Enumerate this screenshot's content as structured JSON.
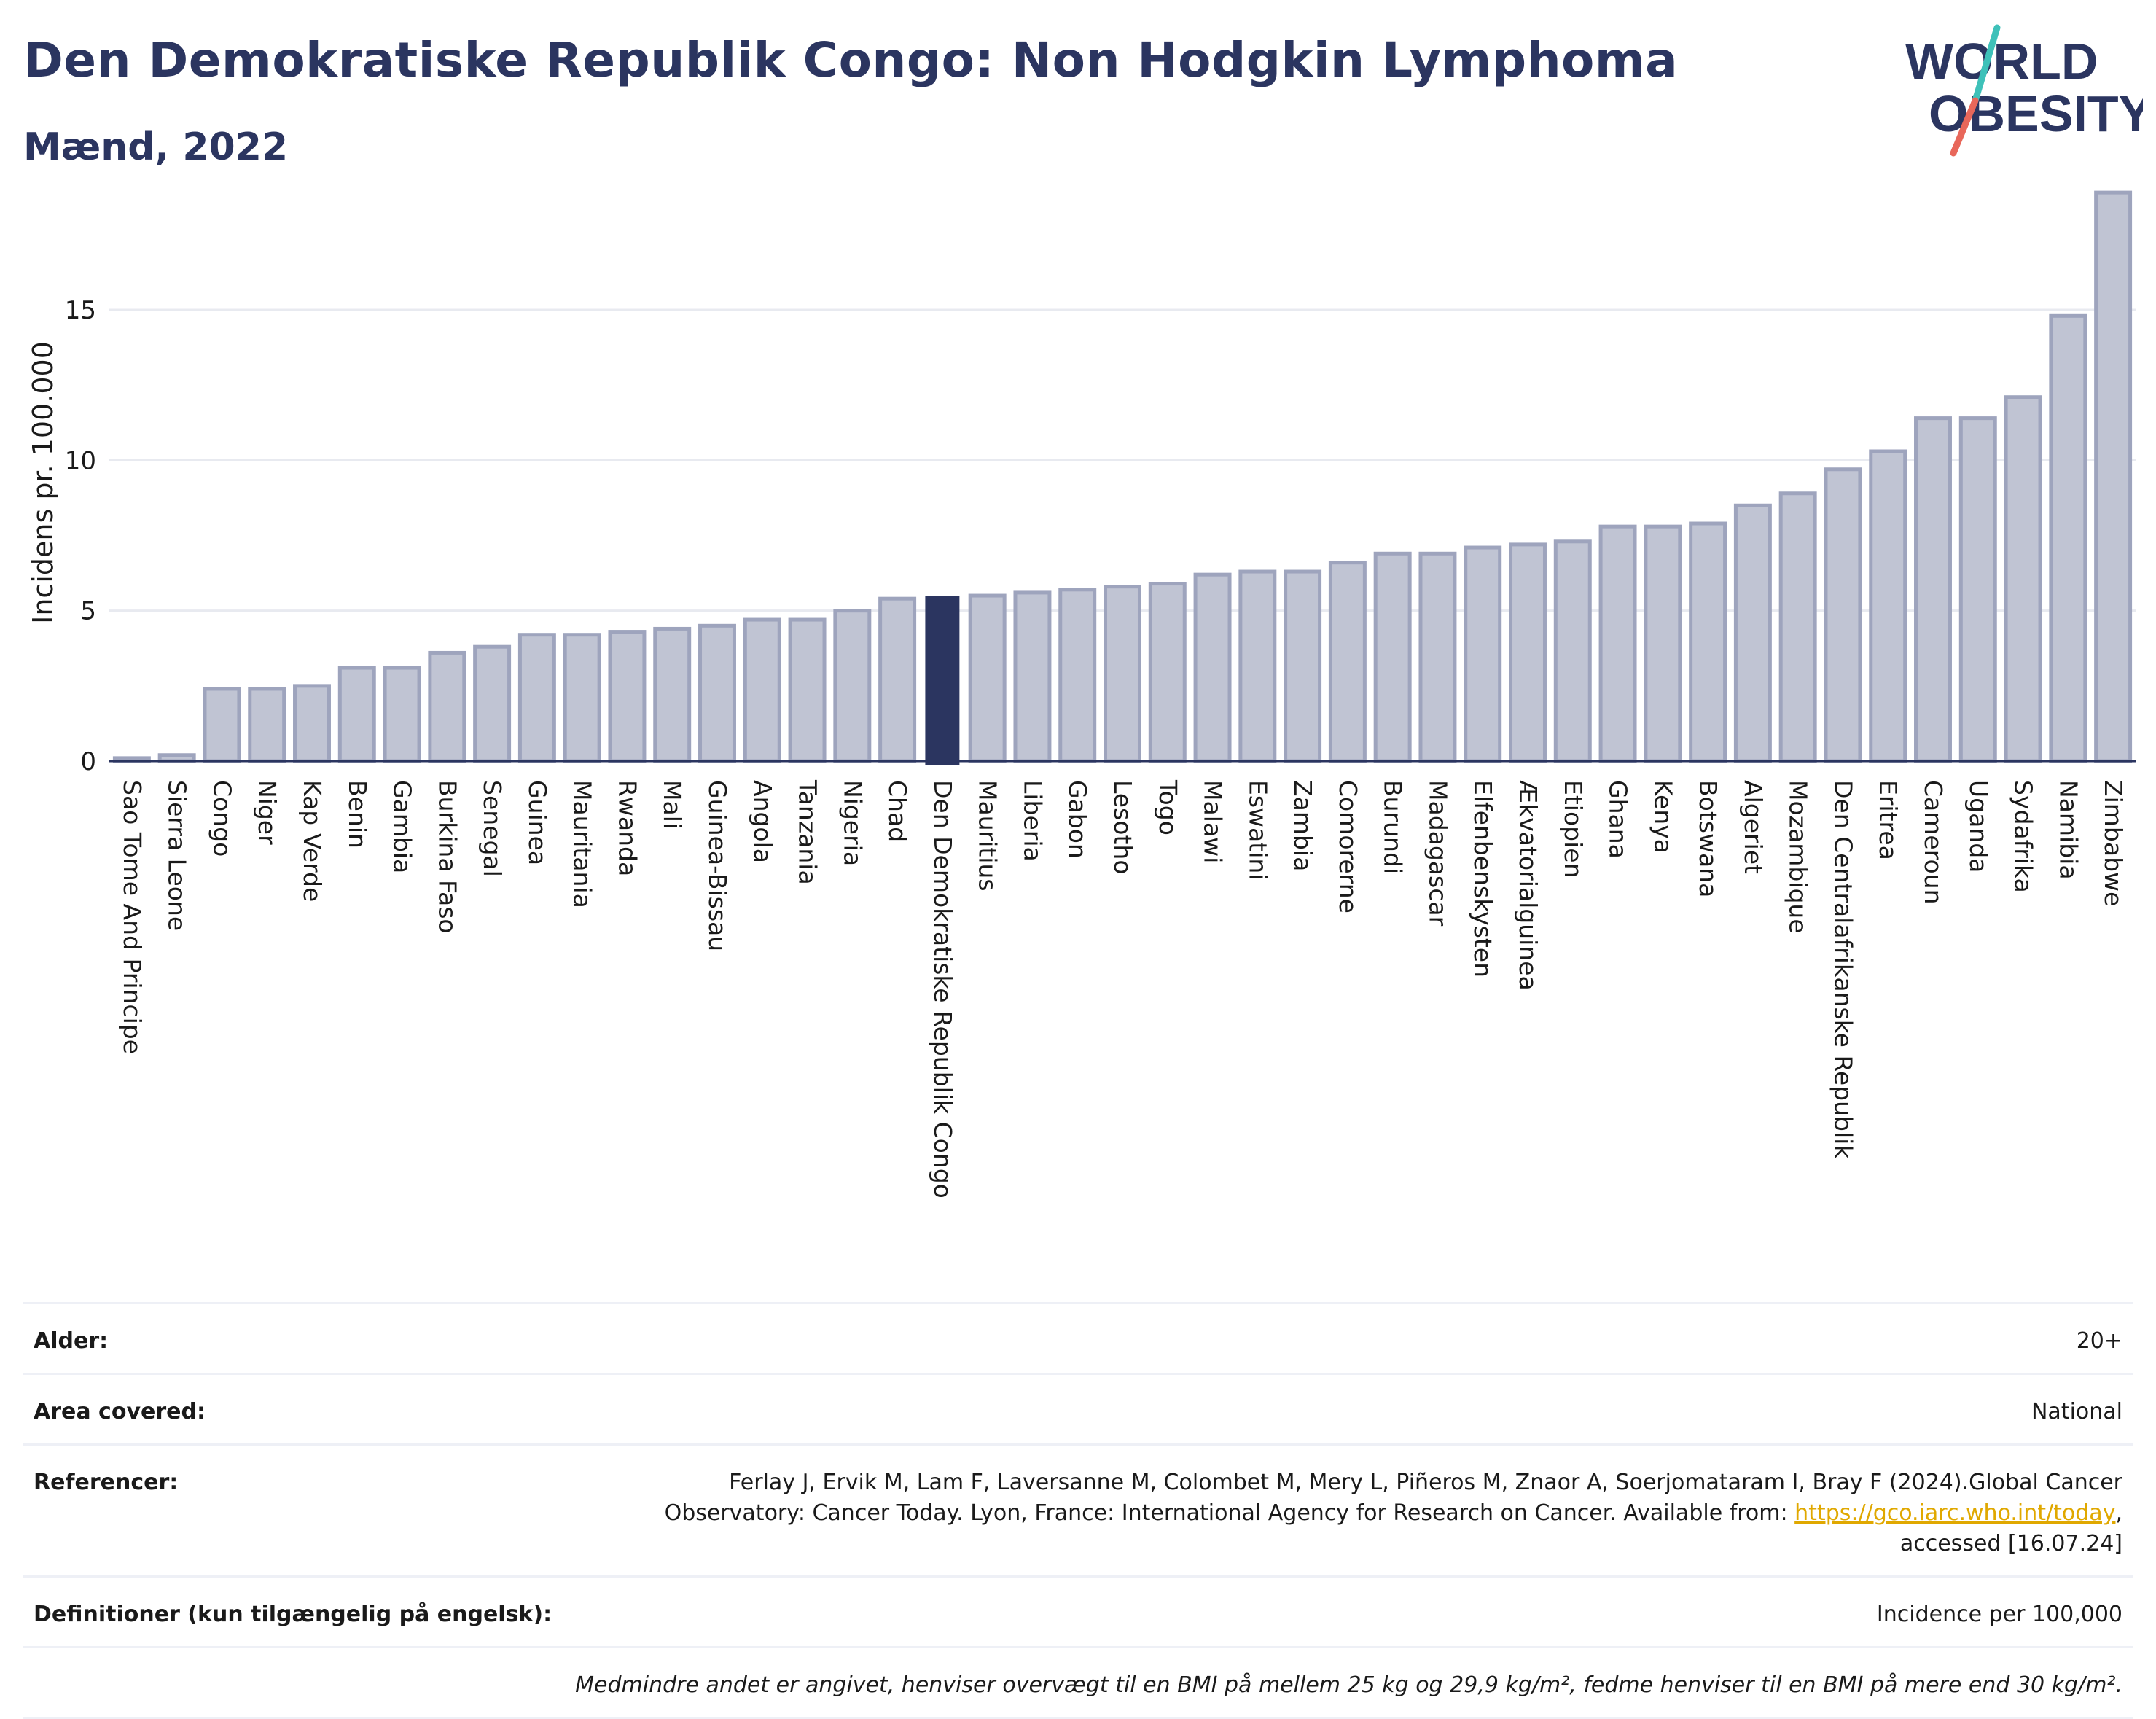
{
  "header": {
    "title": "Den Demokratiske Republik Congo: Non Hodgkin Lymphoma",
    "subtitle": "Mænd, 2022"
  },
  "logo": {
    "line1": "WORLD",
    "line2": "OBESITY",
    "colors": {
      "text": "#2b3560",
      "slash_top": "#3ec1b9",
      "slash_bottom": "#e8675a"
    }
  },
  "chart_data": {
    "type": "bar",
    "title": "Den Demokratiske Republik Congo: Non Hodgkin Lymphoma",
    "subtitle": "Mænd, 2022",
    "xlabel": "",
    "ylabel": "Incidens pr. 100.000",
    "ylim": [
      0,
      19
    ],
    "yticks": [
      0,
      5,
      10,
      15
    ],
    "grid": true,
    "highlight": "Den Demokratiske Republik Congo",
    "colors": {
      "bar": "#c0c4d3",
      "bar_edge": "#9ea4bd",
      "highlight": "#2b3560"
    },
    "categories": [
      "Sao Tome And Principe",
      "Sierra Leone",
      "Congo",
      "Niger",
      "Kap Verde",
      "Benin",
      "Gambia",
      "Burkina Faso",
      "Senegal",
      "Guinea",
      "Mauritania",
      "Rwanda",
      "Mali",
      "Guinea-Bissau",
      "Angola",
      "Tanzania",
      "Nigeria",
      "Chad",
      "Den Demokratiske Republik Congo",
      "Mauritius",
      "Liberia",
      "Gabon",
      "Lesotho",
      "Togo",
      "Malawi",
      "Eswatini",
      "Zambia",
      "Comorerne",
      "Burundi",
      "Madagascar",
      "Elfenbenskysten",
      "Ækvatorialguinea",
      "Etiopien",
      "Ghana",
      "Kenya",
      "Botswana",
      "Algeriet",
      "Mozambique",
      "Den Centralafrikanske Republik",
      "Eritrea",
      "Cameroun",
      "Uganda",
      "Sydafrika",
      "Namibia",
      "Zimbabwe"
    ],
    "values": [
      0.1,
      0.2,
      2.4,
      2.4,
      2.5,
      3.1,
      3.1,
      3.6,
      3.8,
      4.2,
      4.2,
      4.3,
      4.4,
      4.5,
      4.7,
      4.7,
      5.0,
      5.4,
      5.5,
      5.5,
      5.6,
      5.7,
      5.8,
      5.9,
      6.2,
      6.3,
      6.3,
      6.6,
      6.9,
      6.9,
      7.1,
      7.2,
      7.3,
      7.8,
      7.8,
      7.9,
      8.5,
      8.9,
      9.7,
      10.3,
      11.4,
      11.4,
      12.1,
      14.8,
      18.9
    ]
  },
  "info": {
    "age_label": "Alder:",
    "age_value": "20+",
    "area_label": "Area covered:",
    "area_value": "National",
    "ref_label": "Referencer:",
    "ref_text_1": "Ferlay J, Ervik M, Lam F, Laversanne M, Colombet M, Mery L, Piñeros M, Znaor A, Soerjomataram I, Bray F (2024).Global Cancer Observatory: Cancer Today. Lyon, France: International Agency for Research on Cancer. Available from: ",
    "ref_link": "https://gco.iarc.who.int/today",
    "ref_text_2": ", accessed [16.07.24]",
    "def_label": "Definitioner (kun tilgængelig på engelsk):",
    "def_value": "Incidence per 100,000",
    "note": "Medmindre andet er angivet, henviser overvægt til en BMI på mellem 25 kg og 29,9 kg/m², fedme henviser til en BMI på mere end 30 kg/m²."
  }
}
